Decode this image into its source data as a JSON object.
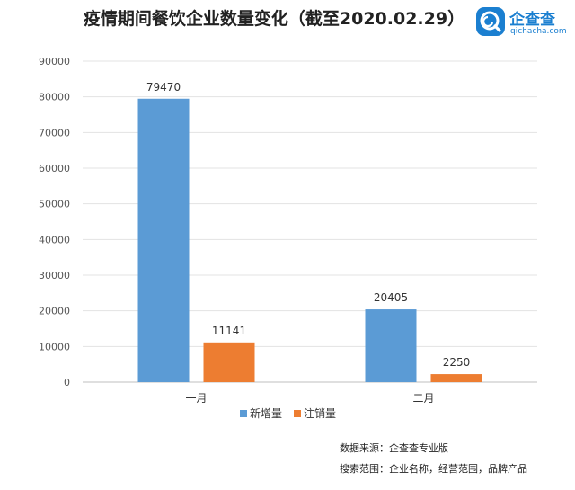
{
  "header": {
    "title": "疫情期间餐饮企业数量变化（截至2020.02.29）"
  },
  "brand": {
    "name": "企查查",
    "url": "qichacha.com",
    "icon": "search-logo-icon",
    "color": "#1b7fd0"
  },
  "chart_data": {
    "type": "bar",
    "categories": [
      "一月",
      "二月"
    ],
    "series": [
      {
        "name": "新增量",
        "color": "#5b9bd5",
        "values": [
          79470,
          20405
        ]
      },
      {
        "name": "注销量",
        "color": "#ed7d31",
        "values": [
          11141,
          2250
        ]
      }
    ],
    "title": "疫情期间餐饮企业数量变化（截至2020.02.29）",
    "ylim": [
      0,
      90000
    ],
    "yticks": [
      0,
      10000,
      20000,
      30000,
      40000,
      50000,
      60000,
      70000,
      80000,
      90000
    ],
    "grid": true,
    "legend": "bottom"
  },
  "footer": {
    "source": "数据来源：企查查专业版",
    "scope": "搜索范围：企业名称，经营范围，品牌产品"
  }
}
